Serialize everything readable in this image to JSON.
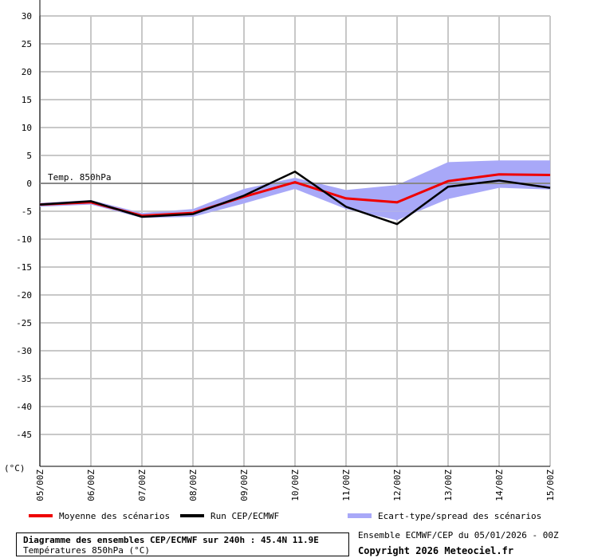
{
  "chart_data": {
    "type": "line",
    "y_unit_label": "(°C)",
    "ylim": [
      -50,
      30
    ],
    "yticks": [
      30,
      25,
      20,
      15,
      10,
      5,
      0,
      -5,
      -10,
      -15,
      -20,
      -25,
      -30,
      -35,
      -40,
      -45
    ],
    "categories": [
      "05/00Z",
      "06/00Z",
      "07/00Z",
      "08/00Z",
      "09/00Z",
      "10/00Z",
      "11/00Z",
      "12/00Z",
      "13/00Z",
      "14/00Z",
      "15/00Z"
    ],
    "annotation": "Temp. 850hPa",
    "grid": true,
    "series": [
      {
        "name": "Moyenne des scénarios",
        "color": "#ee0000",
        "values": [
          -3.8,
          -3.4,
          -5.8,
          -5.3,
          -2.4,
          0.2,
          -2.7,
          -3.4,
          0.4,
          1.6,
          1.5
        ]
      },
      {
        "name": "Run CEP/ECMWF",
        "color": "#000000",
        "values": [
          -3.8,
          -3.2,
          -6.0,
          -5.5,
          -2.2,
          2.1,
          -4.2,
          -7.3,
          -0.6,
          0.5,
          -0.8
        ]
      },
      {
        "name": "Ecart-type/spread des scénarios",
        "color": "#a8a8f8",
        "upper": [
          -3.5,
          -3.0,
          -5.3,
          -4.6,
          -1.0,
          1.0,
          -1.2,
          -0.3,
          3.8,
          4.1,
          4.1
        ],
        "lower": [
          -4.2,
          -3.8,
          -6.2,
          -6.0,
          -3.6,
          -1.0,
          -4.6,
          -6.6,
          -2.8,
          -0.8,
          -1.1
        ]
      }
    ]
  },
  "footer": {
    "title": "Diagramme des ensembles CEP/ECMWF sur 240h : 45.4N 11.9E",
    "subtitle": "Températures 850hPa (°C)",
    "ensemble_info": "Ensemble ECMWF/CEP du 05/01/2026 - 00Z",
    "copyright": "Copyright 2026 Meteociel.fr"
  }
}
